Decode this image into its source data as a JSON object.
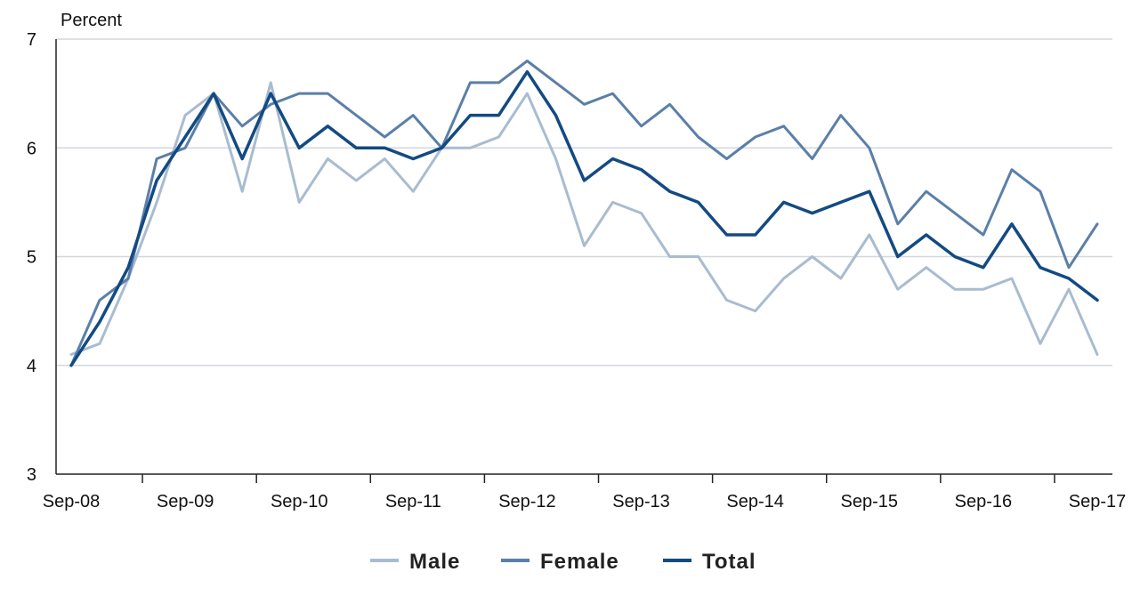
{
  "chart_data": {
    "type": "line",
    "ylabel": "Percent",
    "ylim": [
      3,
      7
    ],
    "yticks": [
      3,
      4,
      5,
      6,
      7
    ],
    "grid": true,
    "legend_position": "bottom-center",
    "x_tick_labels": [
      "Sep-08",
      "Sep-09",
      "Sep-10",
      "Sep-11",
      "Sep-12",
      "Sep-13",
      "Sep-14",
      "Sep-15",
      "Sep-16",
      "Sep-17"
    ],
    "x_tick_indices": [
      0,
      4,
      8,
      12,
      16,
      20,
      24,
      28,
      32,
      36
    ],
    "series": [
      {
        "name": "Male",
        "color": "#a9bccf",
        "values": [
          4.1,
          4.2,
          4.8,
          5.5,
          6.3,
          6.5,
          5.6,
          6.6,
          5.5,
          5.9,
          5.7,
          5.9,
          5.6,
          6.0,
          6.0,
          6.1,
          6.5,
          5.9,
          5.1,
          5.5,
          5.4,
          5.0,
          5.0,
          4.6,
          4.5,
          4.8,
          5.0,
          4.8,
          5.2,
          4.7,
          4.9,
          4.7,
          4.7,
          4.8,
          4.2,
          4.7,
          4.1
        ]
      },
      {
        "name": "Female",
        "color": "#5b7fa8",
        "values": [
          4.0,
          4.6,
          4.8,
          5.9,
          6.0,
          6.5,
          6.2,
          6.4,
          6.5,
          6.5,
          6.3,
          6.1,
          6.3,
          6.0,
          6.6,
          6.6,
          6.8,
          6.6,
          6.4,
          6.5,
          6.2,
          6.4,
          6.1,
          5.9,
          6.1,
          6.2,
          5.9,
          6.3,
          6.0,
          5.3,
          5.6,
          5.4,
          5.2,
          5.8,
          5.6,
          4.9,
          5.3
        ]
      },
      {
        "name": "Total",
        "color": "#134a82",
        "values": [
          4.0,
          4.4,
          4.9,
          5.7,
          6.1,
          6.5,
          5.9,
          6.5,
          6.0,
          6.2,
          6.0,
          6.0,
          5.9,
          6.0,
          6.3,
          6.3,
          6.7,
          6.3,
          5.7,
          5.9,
          5.8,
          5.6,
          5.5,
          5.2,
          5.2,
          5.5,
          5.4,
          5.5,
          5.6,
          5.0,
          5.2,
          5.0,
          4.9,
          5.3,
          4.9,
          4.8,
          4.6
        ]
      }
    ]
  }
}
